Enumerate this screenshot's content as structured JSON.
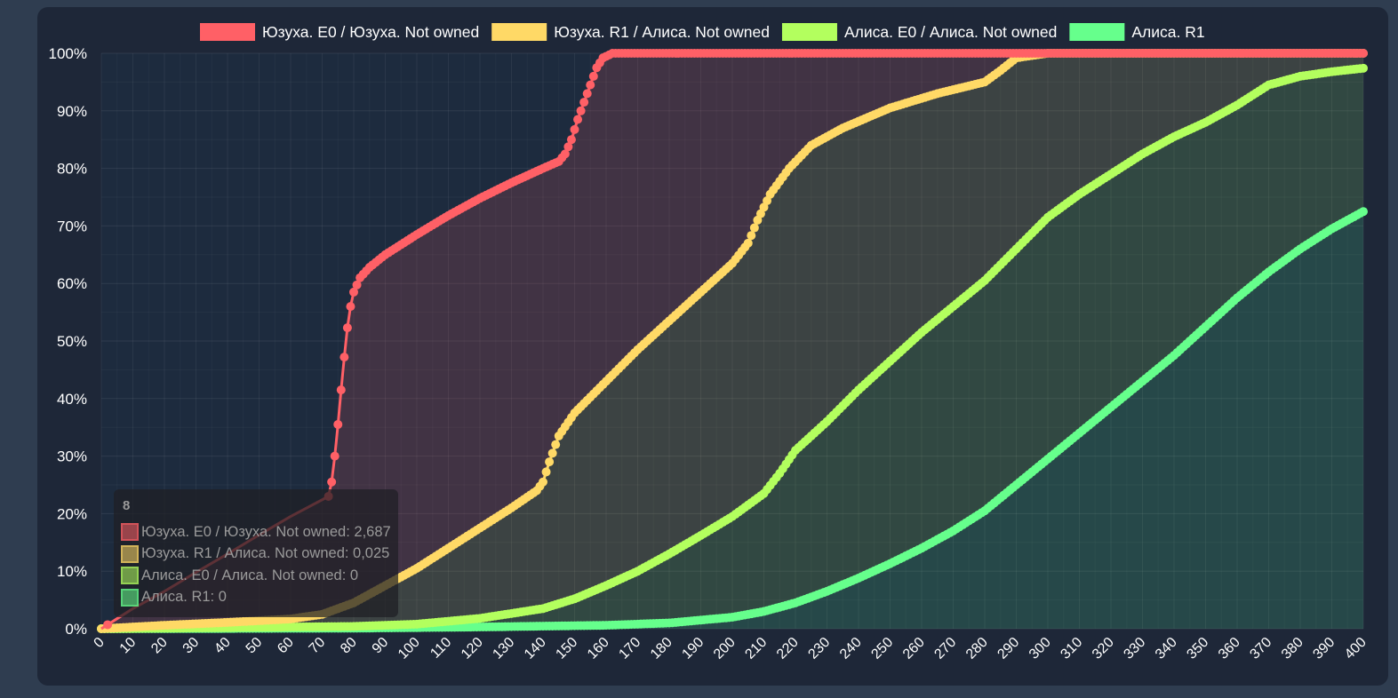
{
  "chart_data": {
    "type": "line",
    "title": "",
    "xlabel": "",
    "ylabel": "",
    "xlim": [
      0,
      400
    ],
    "ylim": [
      0,
      100
    ],
    "y_tick_format": "percent",
    "x_ticks": [
      0,
      10,
      20,
      30,
      40,
      50,
      60,
      70,
      80,
      90,
      100,
      110,
      120,
      130,
      140,
      150,
      160,
      170,
      180,
      190,
      200,
      210,
      220,
      230,
      240,
      250,
      260,
      270,
      280,
      290,
      300,
      310,
      320,
      330,
      340,
      350,
      360,
      370,
      380,
      390,
      400
    ],
    "y_ticks": [
      "0%",
      "10%",
      "20%",
      "30%",
      "40%",
      "50%",
      "60%",
      "70%",
      "80%",
      "90%",
      "100%"
    ],
    "grid": true,
    "legend_position": "top",
    "series": [
      {
        "name": "Юзуха. E0 / Юзуха. Not owned",
        "color": "#ff6066",
        "points": [
          [
            0,
            0
          ],
          [
            10,
            3.5
          ],
          [
            20,
            6.5
          ],
          [
            30,
            9.8
          ],
          [
            40,
            13
          ],
          [
            50,
            16.3
          ],
          [
            60,
            19.5
          ],
          [
            72,
            23
          ],
          [
            73,
            25.5
          ],
          [
            74,
            30
          ],
          [
            75,
            35.5
          ],
          [
            76,
            41.5
          ],
          [
            77,
            47.2
          ],
          [
            78,
            52.3
          ],
          [
            79,
            56
          ],
          [
            80,
            58.5
          ],
          [
            82,
            61
          ],
          [
            85,
            62.8
          ],
          [
            90,
            65
          ],
          [
            100,
            68.5
          ],
          [
            110,
            71.8
          ],
          [
            120,
            74.8
          ],
          [
            130,
            77.5
          ],
          [
            140,
            80
          ],
          [
            145,
            81.2
          ],
          [
            147,
            82.5
          ],
          [
            149,
            85
          ],
          [
            151,
            88.5
          ],
          [
            153,
            91.5
          ],
          [
            155,
            94.5
          ],
          [
            157,
            97.5
          ],
          [
            159,
            99.2
          ],
          [
            162,
            100
          ],
          [
            180,
            100
          ],
          [
            250,
            100
          ],
          [
            320,
            100
          ],
          [
            400,
            100
          ]
        ]
      },
      {
        "name": "Юзуха. R1 / Алиса. Not owned",
        "color": "#ffd966",
        "points": [
          [
            0,
            0
          ],
          [
            20,
            0.6
          ],
          [
            40,
            1.1
          ],
          [
            60,
            1.7
          ],
          [
            70,
            2.5
          ],
          [
            80,
            4.5
          ],
          [
            90,
            7.5
          ],
          [
            100,
            10.5
          ],
          [
            110,
            14
          ],
          [
            120,
            17.5
          ],
          [
            130,
            21
          ],
          [
            138,
            24
          ],
          [
            140,
            25.5
          ],
          [
            142,
            29
          ],
          [
            145,
            33.5
          ],
          [
            150,
            37.5
          ],
          [
            160,
            43
          ],
          [
            170,
            48.5
          ],
          [
            180,
            53.5
          ],
          [
            190,
            58.5
          ],
          [
            200,
            63.5
          ],
          [
            205,
            67
          ],
          [
            208,
            71
          ],
          [
            212,
            75.5
          ],
          [
            218,
            80
          ],
          [
            225,
            84
          ],
          [
            235,
            87
          ],
          [
            250,
            90.5
          ],
          [
            265,
            93
          ],
          [
            280,
            95
          ],
          [
            285,
            97
          ],
          [
            290,
            99.2
          ],
          [
            300,
            100
          ],
          [
            400,
            100
          ]
        ]
      },
      {
        "name": "Алиса. E0 / Алиса. Not owned",
        "color": "#b3ff5e",
        "points": [
          [
            0,
            0
          ],
          [
            40,
            0.2
          ],
          [
            80,
            0.4
          ],
          [
            100,
            0.8
          ],
          [
            120,
            1.8
          ],
          [
            140,
            3.5
          ],
          [
            150,
            5.2
          ],
          [
            160,
            7.5
          ],
          [
            170,
            10
          ],
          [
            180,
            13
          ],
          [
            190,
            16.2
          ],
          [
            200,
            19.5
          ],
          [
            210,
            23.5
          ],
          [
            215,
            27
          ],
          [
            220,
            31
          ],
          [
            230,
            36
          ],
          [
            240,
            41.5
          ],
          [
            250,
            46.5
          ],
          [
            260,
            51.5
          ],
          [
            270,
            56
          ],
          [
            280,
            60.5
          ],
          [
            290,
            66
          ],
          [
            300,
            71.5
          ],
          [
            310,
            75.5
          ],
          [
            320,
            79
          ],
          [
            330,
            82.5
          ],
          [
            340,
            85.5
          ],
          [
            350,
            88
          ],
          [
            360,
            91
          ],
          [
            370,
            94.5
          ],
          [
            380,
            96
          ],
          [
            390,
            96.8
          ],
          [
            400,
            97.4
          ]
        ]
      },
      {
        "name": "Алиса. R1",
        "color": "#66ff8c",
        "points": [
          [
            0,
            0
          ],
          [
            80,
            0.1
          ],
          [
            120,
            0.3
          ],
          [
            160,
            0.6
          ],
          [
            180,
            1
          ],
          [
            200,
            2
          ],
          [
            210,
            3
          ],
          [
            220,
            4.5
          ],
          [
            230,
            6.5
          ],
          [
            240,
            8.8
          ],
          [
            250,
            11.3
          ],
          [
            260,
            14
          ],
          [
            270,
            17
          ],
          [
            280,
            20.5
          ],
          [
            290,
            25
          ],
          [
            300,
            29.5
          ],
          [
            310,
            34
          ],
          [
            320,
            38.5
          ],
          [
            330,
            43
          ],
          [
            340,
            47.5
          ],
          [
            350,
            52.5
          ],
          [
            360,
            57.5
          ],
          [
            370,
            62
          ],
          [
            380,
            66
          ],
          [
            390,
            69.5
          ],
          [
            400,
            72.5
          ]
        ]
      }
    ],
    "tooltip": {
      "title": "8",
      "rows": [
        "Юзуха. E0 / Юзуха. Not owned: 2,687",
        "Юзуха. R1 / Алиса. Not owned: 0,025",
        "Алиса. E0 / Алиса. Not owned: 0",
        "Алиса. R1: 0"
      ]
    }
  }
}
